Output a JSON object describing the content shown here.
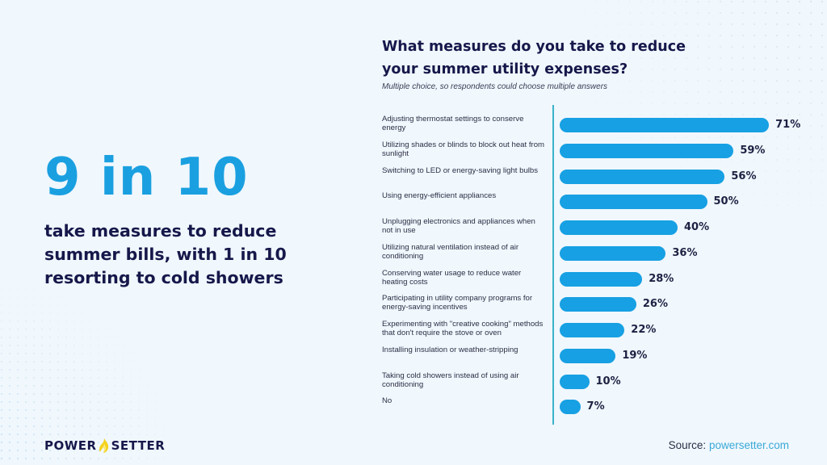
{
  "headline": {
    "stat": "9 in 10",
    "description": "take measures to reduce summer bills, with 1 in 10 resorting to cold showers"
  },
  "chart_data": {
    "type": "bar",
    "orientation": "horizontal",
    "title": "What measures do you take to reduce your summer utility expenses?",
    "subtitle": "Multiple choice, so respondents could choose multiple answers",
    "xlabel": "",
    "ylabel": "",
    "unit": "%",
    "xlim": [
      0,
      71
    ],
    "grid": false,
    "categories": [
      "Adjusting thermostat settings to conserve energy",
      "Utilizing shades or blinds to block out heat from sunlight",
      "Switching to LED or energy-saving light bulbs",
      "Using energy-efficient appliances",
      "Unplugging electronics and appliances when not in use",
      "Utilizing natural ventilation instead of air conditioning",
      "Conserving water usage to reduce water heating costs",
      "Participating in utility company programs for energy-saving incentives",
      "Experimenting with \"creative cooking\" methods that don't require the stove or oven",
      "Installing insulation or weather-stripping",
      "Taking cold showers instead of using air conditioning",
      "No"
    ],
    "values": [
      71,
      59,
      56,
      50,
      40,
      36,
      28,
      26,
      22,
      19,
      10,
      7
    ],
    "labels": [
      "71%",
      "59%",
      "56%",
      "50%",
      "40%",
      "36%",
      "28%",
      "26%",
      "22%",
      "19%",
      "10%",
      "7%"
    ],
    "colors": {
      "bar": "#17a0e3",
      "axis": "#3bb3c9"
    }
  },
  "brand": {
    "left": "POWER",
    "right": "SETTER",
    "flame_icon": "flame-icon"
  },
  "source": {
    "prefix": "Source:",
    "link": "powersetter.com"
  }
}
